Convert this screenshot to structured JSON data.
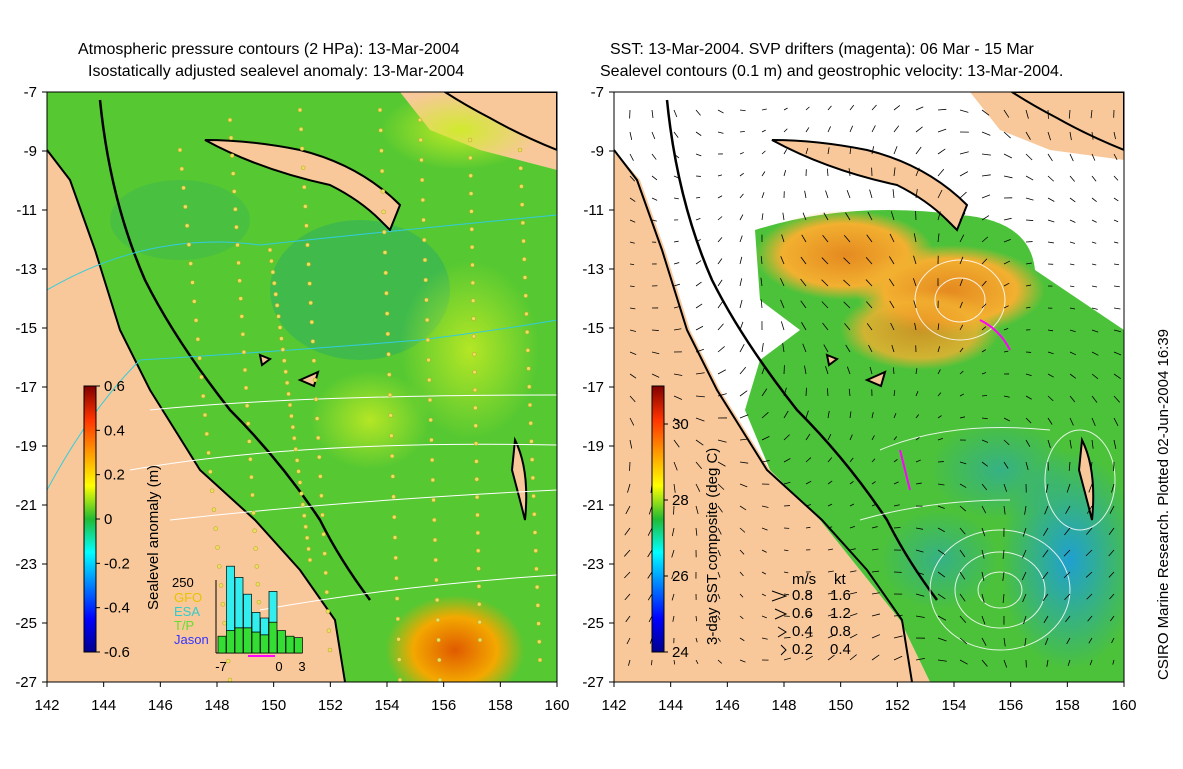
{
  "chart_data": [
    {
      "type": "heatmap",
      "title_lines": [
        "Atmospheric pressure contours (2 HPa): 13-Mar-2004",
        "Isostatically adjusted sealevel anomaly: 13-Mar-2004"
      ],
      "xlabel": "",
      "ylabel": "",
      "x_ticks": [
        "142",
        "144",
        "146",
        "148",
        "150",
        "152",
        "154",
        "156",
        "158",
        "160"
      ],
      "y_ticks": [
        "-7",
        "-9",
        "-11",
        "-13",
        "-15",
        "-17",
        "-19",
        "-21",
        "-23",
        "-25",
        "-27"
      ],
      "xlim": [
        142,
        160
      ],
      "ylim": [
        -27,
        -7
      ],
      "colorbar": {
        "label": "Sealevel anomaly (m)",
        "ticks": [
          "0.6",
          "0.4",
          "0.2",
          "0",
          "-0.2",
          "-0.4",
          "-0.6"
        ],
        "range": [
          -0.6,
          0.6
        ],
        "palette": "jet"
      },
      "inset_histogram": {
        "ymax_label": "250",
        "legend": [
          {
            "name": "GFO",
            "color": "#e6c300"
          },
          {
            "name": "ESA",
            "color": "#33cccc"
          },
          {
            "name": "T/P",
            "color": "#66dd33"
          },
          {
            "name": "Jason",
            "color": "#3333ff"
          }
        ],
        "x_ticks": [
          "-7",
          "0",
          "3"
        ],
        "bars": [
          {
            "day": -7,
            "esa": 0,
            "tp": 60
          },
          {
            "day": -6,
            "esa": 230,
            "tp": 80
          },
          {
            "day": -5,
            "esa": 180,
            "tp": 90
          },
          {
            "day": -4,
            "esa": 120,
            "tp": 90
          },
          {
            "day": -3,
            "esa": 70,
            "tp": 75
          },
          {
            "day": -2,
            "esa": 60,
            "tp": 65
          },
          {
            "day": -1,
            "esa": 110,
            "tp": 110
          },
          {
            "day": 0,
            "esa": 0,
            "tp": 80
          },
          {
            "day": 1,
            "esa": 0,
            "tp": 60
          },
          {
            "day": 2,
            "esa": 0,
            "tp": 55
          }
        ]
      }
    },
    {
      "type": "heatmap",
      "title_lines": [
        "SST: 13-Mar-2004. SVP drifters (magenta): 06 Mar - 15 Mar",
        "Sealevel contours (0.1 m) and geostrophic velocity: 13-Mar-2004."
      ],
      "x_ticks": [
        "142",
        "144",
        "146",
        "148",
        "150",
        "152",
        "154",
        "156",
        "158",
        "160"
      ],
      "y_ticks": [
        "-7",
        "-9",
        "-11",
        "-13",
        "-15",
        "-17",
        "-19",
        "-21",
        "-23",
        "-25",
        "-27"
      ],
      "xlim": [
        142,
        160
      ],
      "ylim": [
        -27,
        -7
      ],
      "colorbar": {
        "label": "3-day SST composite (deg C)",
        "ticks": [
          "30",
          "28",
          "26",
          "24"
        ],
        "range": [
          24,
          31
        ],
        "palette": "jet"
      },
      "velocity_legend": {
        "header_ms": "m/s",
        "header_kt": "kt",
        "rows": [
          {
            "ms": "0.8",
            "kt": "1.6"
          },
          {
            "ms": "0.6",
            "kt": "1.2"
          },
          {
            "ms": "0.4",
            "kt": "0.8"
          },
          {
            "ms": "0.2",
            "kt": "0.4"
          }
        ]
      }
    }
  ],
  "credit": "CSIRO Marine Research. Plotted 02-Jun-2004 16:39",
  "colors": {
    "land": "#f8c89a",
    "jet_low": "#00008f",
    "jet_high": "#800000",
    "drifter": "#ff00ff"
  }
}
